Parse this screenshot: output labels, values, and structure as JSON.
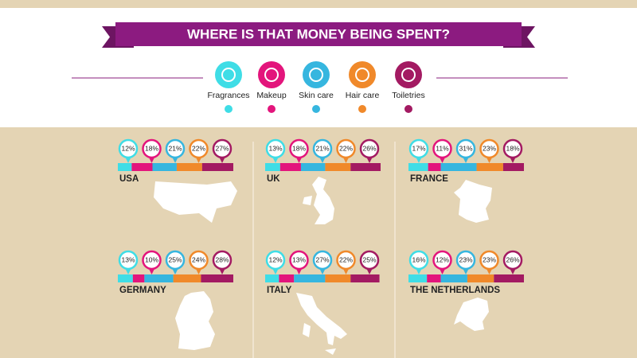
{
  "title": "WHERE IS THAT MONEY BEING SPENT?",
  "categories": [
    {
      "name": "Fragrances",
      "color": "#3fdde6"
    },
    {
      "name": "Makeup",
      "color": "#e3157c"
    },
    {
      "name": "Skin care",
      "color": "#36b6df"
    },
    {
      "name": "Hair care",
      "color": "#f0892a"
    },
    {
      "name": "Toiletries",
      "color": "#a31a62"
    }
  ],
  "countries": [
    {
      "name": "USA",
      "values": [
        12,
        18,
        21,
        22,
        27
      ],
      "value_labels": [
        "12%",
        "18%",
        "21%",
        "22%",
        "27%"
      ]
    },
    {
      "name": "UK",
      "values": [
        13,
        18,
        21,
        22,
        26
      ],
      "value_labels": [
        "13%",
        "18%",
        "21%",
        "22%",
        "26%"
      ]
    },
    {
      "name": "FRANCE",
      "values": [
        17,
        11,
        31,
        23,
        18
      ],
      "value_labels": [
        "17%",
        "11%",
        "31%",
        "23%",
        "18%"
      ]
    },
    {
      "name": "GERMANY",
      "values": [
        13,
        10,
        25,
        24,
        28
      ],
      "value_labels": [
        "13%",
        "10%",
        "25%",
        "24%",
        "28%"
      ]
    },
    {
      "name": "ITALY",
      "values": [
        12,
        13,
        27,
        22,
        25
      ],
      "value_labels": [
        "12%",
        "13%",
        "27%",
        "22%",
        "25%"
      ]
    },
    {
      "name": "THE NETHERLANDS",
      "values": [
        16,
        12,
        23,
        23,
        26
      ],
      "value_labels": [
        "16%",
        "12%",
        "23%",
        "23%",
        "26%"
      ]
    }
  ]
}
